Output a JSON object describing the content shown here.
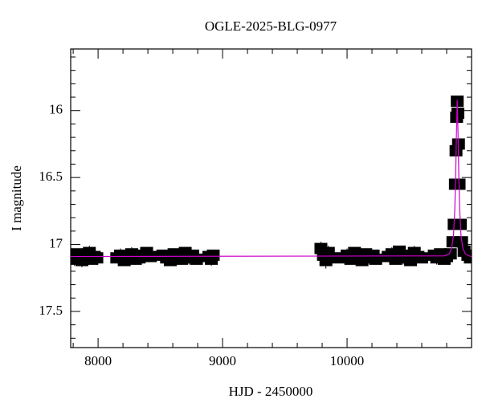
{
  "chart_data": {
    "type": "scatter",
    "title": "OGLE-2025-BLG-0977",
    "x_label": "HJD - 2450000",
    "y_label": "I magnitude",
    "xlim": [
      7780,
      11000
    ],
    "ylim": [
      17.77,
      15.54
    ],
    "xticks": [
      8000,
      9000,
      10000
    ],
    "yticks": [
      16,
      16.5,
      17,
      17.5
    ],
    "xminorticks": [
      7800,
      8200,
      8400,
      8600,
      8800,
      9200,
      9400,
      9600,
      9800,
      10200,
      10400,
      10600,
      10800
    ],
    "yminorticks": [
      15.6,
      15.7,
      15.8,
      15.9,
      16.1,
      16.2,
      16.3,
      16.4,
      16.6,
      16.7,
      16.8,
      16.9,
      17.1,
      17.2,
      17.3,
      17.4,
      17.6,
      17.7
    ],
    "series": [
      {
        "type": "errorbar",
        "color": "#000000",
        "x": [
          7790,
          7810,
          7830,
          7850,
          7870,
          7890,
          7910,
          7930,
          7950,
          7970,
          7990,
          8150,
          8180,
          8210,
          8240,
          8270,
          8300,
          8330,
          8360,
          8390,
          8420,
          8520,
          8550,
          8580,
          8610,
          8640,
          8670,
          8700,
          8730,
          8760,
          8790,
          8890,
          8910,
          8925,
          9790,
          9810,
          9830,
          9850,
          9870,
          9970,
          10000,
          10030,
          10060,
          10090,
          10120,
          10150,
          10180,
          10210,
          10230,
          10330,
          10360,
          10390,
          10420,
          10450,
          10480,
          10510,
          10540,
          10570,
          10600,
          10700,
          10720,
          10750,
          10780,
          10800,
          10830,
          10850,
          10860,
          10870,
          10875,
          10880,
          10885,
          10890,
          10895,
          10900,
          10910,
          10920,
          10940,
          10970,
          10990
        ],
        "values": [
          17.09,
          17.11,
          17.07,
          17.1,
          17.12,
          17.08,
          17.1,
          17.06,
          17.11,
          17.09,
          17.1,
          17.1,
          17.08,
          17.12,
          17.09,
          17.07,
          17.11,
          17.1,
          17.08,
          17.06,
          17.09,
          17.08,
          17.1,
          17.12,
          17.07,
          17.09,
          17.11,
          17.06,
          17.1,
          17.08,
          17.11,
          17.09,
          17.11,
          17.08,
          17.03,
          17.08,
          17.12,
          17.06,
          17.1,
          17.1,
          17.08,
          17.11,
          17.06,
          17.09,
          17.12,
          17.07,
          17.1,
          17.08,
          17.11,
          17.09,
          17.07,
          17.11,
          17.05,
          17.1,
          17.08,
          17.12,
          17.06,
          17.09,
          17.1,
          17.08,
          17.1,
          17.07,
          17.11,
          17.09,
          17.07,
          16.98,
          16.85,
          16.55,
          16.3,
          16.05,
          15.93,
          16.02,
          16.25,
          16.55,
          16.85,
          16.98,
          17.05,
          17.08,
          17.1
        ],
        "errors": [
          0.04,
          0.05,
          0.04,
          0.04,
          0.05,
          0.04,
          0.04,
          0.05,
          0.04,
          0.04,
          0.05,
          0.04,
          0.05,
          0.04,
          0.04,
          0.05,
          0.04,
          0.04,
          0.05,
          0.04,
          0.04,
          0.04,
          0.05,
          0.04,
          0.04,
          0.05,
          0.04,
          0.04,
          0.05,
          0.04,
          0.04,
          0.04,
          0.05,
          0.04,
          0.05,
          0.05,
          0.06,
          0.05,
          0.05,
          0.04,
          0.05,
          0.04,
          0.04,
          0.05,
          0.04,
          0.04,
          0.05,
          0.04,
          0.04,
          0.04,
          0.05,
          0.04,
          0.04,
          0.05,
          0.04,
          0.04,
          0.05,
          0.04,
          0.04,
          0.04,
          0.05,
          0.04,
          0.04,
          0.05,
          0.03,
          0.03,
          0.03,
          0.03,
          0.03,
          0.02,
          0.02,
          0.02,
          0.02,
          0.03,
          0.03,
          0.03,
          0.03,
          0.04,
          0.04
        ]
      },
      {
        "type": "line",
        "color": "#cc00cc",
        "x": [
          7780,
          10780,
          10820,
          10840,
          10855,
          10865,
          10872,
          10878,
          10885,
          10892,
          10898,
          10905,
          10915,
          10930,
          10950,
          10980,
          11000
        ],
        "values": [
          17.09,
          17.085,
          17.07,
          17.03,
          16.93,
          16.75,
          16.5,
          16.2,
          15.92,
          16.2,
          16.5,
          16.75,
          16.93,
          17.03,
          17.07,
          17.085,
          17.09
        ]
      }
    ]
  }
}
